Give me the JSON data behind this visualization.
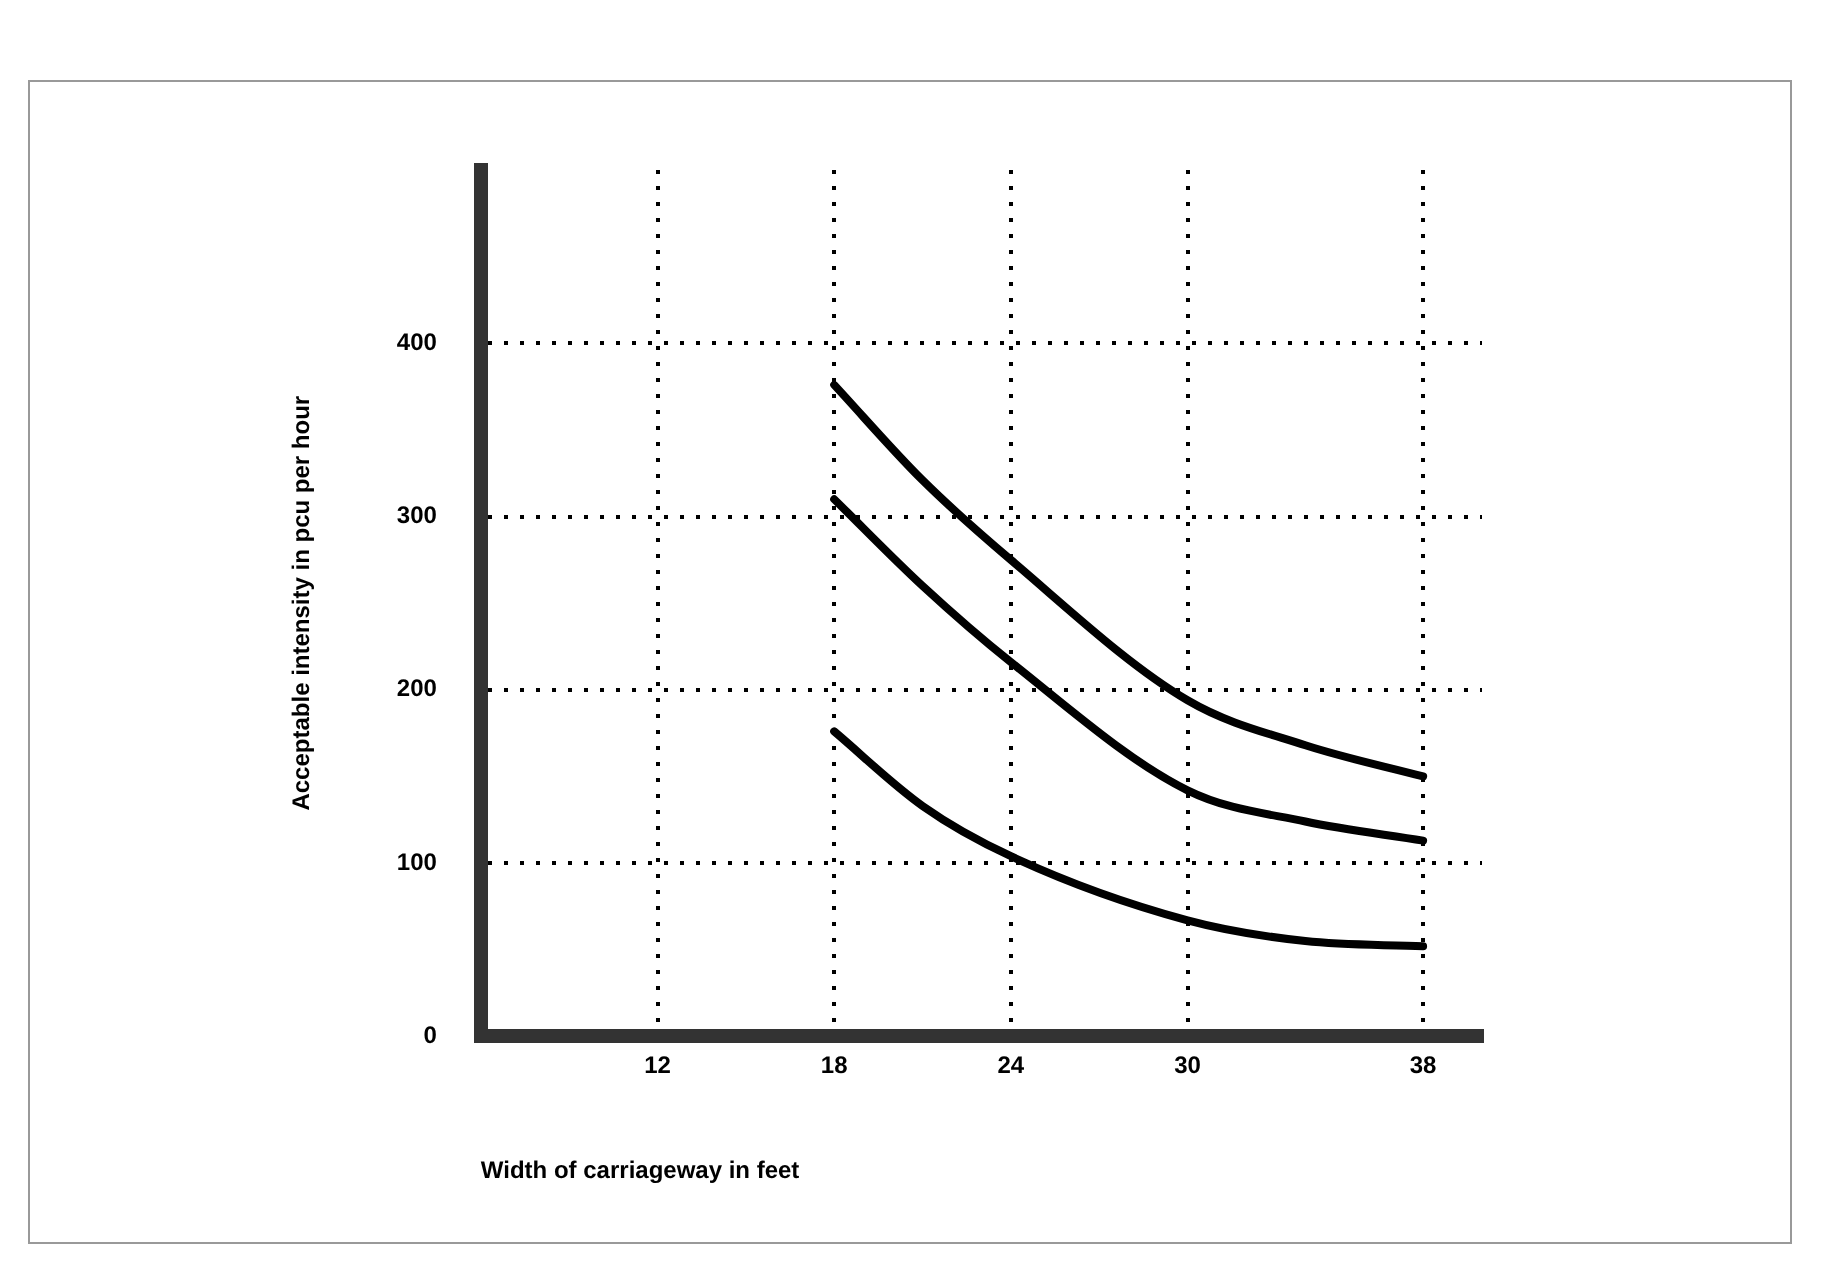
{
  "chart_data": {
    "type": "line",
    "xlabel": "Width of carriageway in feet",
    "ylabel": "Acceptable intensity in pcu per hour",
    "xlim": [
      6,
      40
    ],
    "xticks": [
      12,
      18,
      24,
      30,
      38
    ],
    "ylim": [
      0,
      500
    ],
    "yticks": [
      0,
      100,
      200,
      300,
      400
    ],
    "grid": true,
    "legend": false,
    "marker": "none",
    "line_style": "solid",
    "series": [
      {
        "color": "#000000",
        "x": [
          18,
          21,
          24,
          30,
          34,
          38
        ],
        "values": [
          376,
          321,
          275,
          194,
          168,
          150
        ]
      },
      {
        "color": "#000000",
        "x": [
          18,
          21,
          24,
          30,
          34,
          38
        ],
        "values": [
          310,
          260,
          216,
          142,
          124,
          113
        ]
      },
      {
        "color": "#000000",
        "x": [
          18,
          21,
          24,
          30,
          34,
          38
        ],
        "values": [
          176,
          133,
          104,
          67,
          55,
          52
        ]
      }
    ]
  }
}
